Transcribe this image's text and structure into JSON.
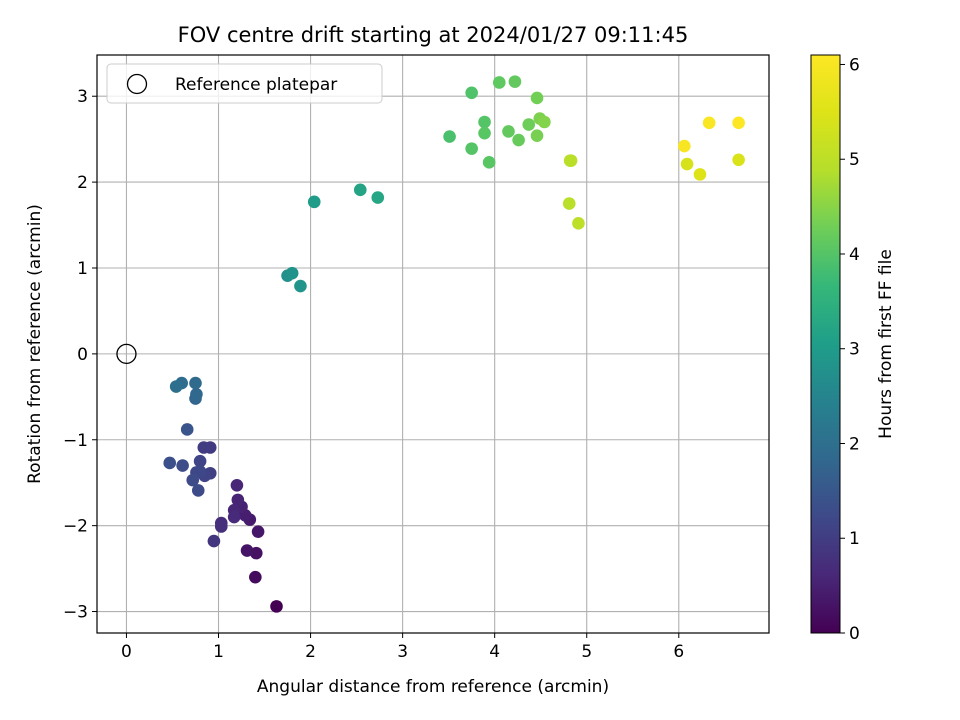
{
  "chart_data": {
    "type": "scatter",
    "title": "FOV centre drift starting at 2024/01/27 09:11:45",
    "xlabel": "Angular distance from reference (arcmin)",
    "ylabel": "Rotation from reference (arcmin)",
    "xlim": [
      -0.32,
      6.98
    ],
    "ylim": [
      -3.25,
      3.48
    ],
    "xticks": [
      0,
      1,
      2,
      3,
      4,
      5,
      6
    ],
    "yticks": [
      -3,
      -2,
      -1,
      0,
      1,
      2,
      3
    ],
    "xtick_labels": [
      "0",
      "1",
      "2",
      "3",
      "4",
      "5",
      "6"
    ],
    "ytick_labels": [
      "−3",
      "−2",
      "−1",
      "0",
      "1",
      "2",
      "3"
    ],
    "grid": true,
    "legend": {
      "placement": "top-left",
      "entries": [
        "Reference platepar"
      ]
    },
    "reference_point": {
      "x": 0,
      "y": 0
    },
    "colorbar": {
      "label": "Hours from first FF file",
      "colormap": "viridis",
      "range": [
        0,
        6.1
      ],
      "ticks": [
        0,
        1,
        2,
        3,
        4,
        5,
        6
      ],
      "tick_labels": [
        "0",
        "1",
        "2",
        "3",
        "4",
        "5",
        "6"
      ]
    },
    "points": [
      {
        "x": 1.63,
        "y": -2.94,
        "h": 0.0
      },
      {
        "x": 1.4,
        "y": -2.6,
        "h": 0.15
      },
      {
        "x": 1.41,
        "y": -2.32,
        "h": 0.25
      },
      {
        "x": 1.31,
        "y": -2.29,
        "h": 0.3
      },
      {
        "x": 1.43,
        "y": -2.07,
        "h": 0.35
      },
      {
        "x": 1.34,
        "y": -1.93,
        "h": 0.4
      },
      {
        "x": 1.29,
        "y": -1.88,
        "h": 0.45
      },
      {
        "x": 1.25,
        "y": -1.78,
        "h": 0.5
      },
      {
        "x": 1.21,
        "y": -1.7,
        "h": 0.55
      },
      {
        "x": 1.2,
        "y": -1.53,
        "h": 0.6
      },
      {
        "x": 1.17,
        "y": -1.82,
        "h": 0.6
      },
      {
        "x": 1.17,
        "y": -1.9,
        "h": 0.65
      },
      {
        "x": 1.03,
        "y": -1.97,
        "h": 0.7
      },
      {
        "x": 1.03,
        "y": -2.01,
        "h": 0.75
      },
      {
        "x": 0.95,
        "y": -2.18,
        "h": 0.85
      },
      {
        "x": 0.91,
        "y": -1.09,
        "h": 0.95
      },
      {
        "x": 0.84,
        "y": -1.09,
        "h": 1.0
      },
      {
        "x": 0.91,
        "y": -1.39,
        "h": 1.05
      },
      {
        "x": 0.85,
        "y": -1.42,
        "h": 1.1
      },
      {
        "x": 0.8,
        "y": -1.25,
        "h": 1.15
      },
      {
        "x": 0.8,
        "y": -1.37,
        "h": 1.2
      },
      {
        "x": 0.76,
        "y": -1.38,
        "h": 1.2
      },
      {
        "x": 0.72,
        "y": -1.47,
        "h": 1.25
      },
      {
        "x": 0.78,
        "y": -1.59,
        "h": 1.25
      },
      {
        "x": 0.61,
        "y": -1.3,
        "h": 1.3
      },
      {
        "x": 0.47,
        "y": -1.27,
        "h": 1.35
      },
      {
        "x": 0.66,
        "y": -0.88,
        "h": 1.45
      },
      {
        "x": 0.75,
        "y": -0.52,
        "h": 1.8
      },
      {
        "x": 0.76,
        "y": -0.47,
        "h": 1.85
      },
      {
        "x": 0.75,
        "y": -0.34,
        "h": 1.9
      },
      {
        "x": 0.6,
        "y": -0.34,
        "h": 1.95
      },
      {
        "x": 0.54,
        "y": -0.38,
        "h": 2.0
      },
      {
        "x": 1.75,
        "y": 0.91,
        "h": 2.75
      },
      {
        "x": 1.8,
        "y": 0.94,
        "h": 2.8
      },
      {
        "x": 1.89,
        "y": 0.79,
        "h": 2.85
      },
      {
        "x": 2.04,
        "y": 1.77,
        "h": 3.0
      },
      {
        "x": 2.54,
        "y": 1.91,
        "h": 3.2
      },
      {
        "x": 2.73,
        "y": 1.82,
        "h": 3.25
      },
      {
        "x": 3.51,
        "y": 2.53,
        "h": 3.9
      },
      {
        "x": 3.75,
        "y": 3.04,
        "h": 3.95
      },
      {
        "x": 3.75,
        "y": 2.39,
        "h": 4.0
      },
      {
        "x": 3.89,
        "y": 2.7,
        "h": 4.0
      },
      {
        "x": 3.89,
        "y": 2.57,
        "h": 4.05
      },
      {
        "x": 3.94,
        "y": 2.23,
        "h": 4.05
      },
      {
        "x": 4.05,
        "y": 3.16,
        "h": 4.1
      },
      {
        "x": 4.22,
        "y": 3.17,
        "h": 4.15
      },
      {
        "x": 4.15,
        "y": 2.59,
        "h": 4.15
      },
      {
        "x": 4.26,
        "y": 2.49,
        "h": 4.2
      },
      {
        "x": 4.37,
        "y": 2.67,
        "h": 4.25
      },
      {
        "x": 4.46,
        "y": 2.98,
        "h": 4.3
      },
      {
        "x": 4.46,
        "y": 2.54,
        "h": 4.35
      },
      {
        "x": 4.49,
        "y": 2.74,
        "h": 4.4
      },
      {
        "x": 4.54,
        "y": 2.7,
        "h": 4.45
      },
      {
        "x": 4.82,
        "y": 2.25,
        "h": 4.9
      },
      {
        "x": 4.83,
        "y": 2.25,
        "h": 4.95
      },
      {
        "x": 4.81,
        "y": 1.75,
        "h": 4.95
      },
      {
        "x": 4.91,
        "y": 1.52,
        "h": 5.0
      },
      {
        "x": 6.09,
        "y": 2.21,
        "h": 5.4
      },
      {
        "x": 6.23,
        "y": 2.09,
        "h": 5.5
      },
      {
        "x": 6.65,
        "y": 2.26,
        "h": 5.45
      },
      {
        "x": 6.06,
        "y": 2.42,
        "h": 6.0
      },
      {
        "x": 6.33,
        "y": 2.69,
        "h": 6.05
      },
      {
        "x": 6.65,
        "y": 2.69,
        "h": 6.1
      }
    ]
  }
}
